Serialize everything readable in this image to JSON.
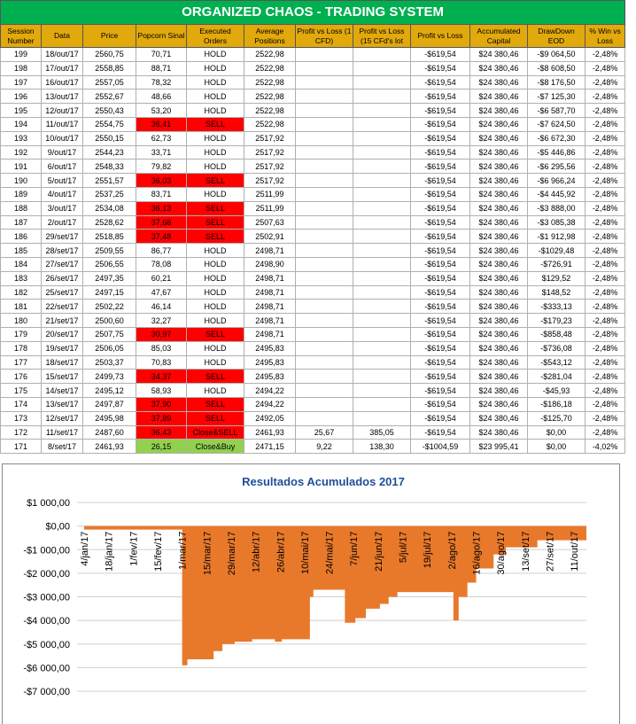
{
  "table": {
    "title": "ORGANIZED CHAOS - TRADING SYSTEM",
    "header": [
      "Session Number",
      "Data",
      "Price",
      "Popcorn Sinal",
      "Executed Orders",
      "Average Positions",
      "Profit vs Loss (1 CFD)",
      "Profit vs Loss (15 CFd's lot",
      "Profit vs Loss",
      "Accumulated Capital",
      "DrawDown EOD",
      "% Win vs Loss"
    ],
    "rows": [
      {
        "cells": [
          "199",
          "18/out/17",
          "2560,75",
          "70,71",
          "HOLD",
          "2522,98",
          null,
          null,
          "-$619,54",
          "$24 380,46",
          "-$9 064,50",
          "-2,48%"
        ]
      },
      {
        "cells": [
          "198",
          "17/out/17",
          "2558,85",
          "88,71",
          "HOLD",
          "2522,98",
          null,
          null,
          "-$619,54",
          "$24 380,46",
          "-$8 608,50",
          "-2,48%"
        ]
      },
      {
        "cells": [
          "197",
          "16/out/17",
          "2557,05",
          "78,32",
          "HOLD",
          "2522,98",
          null,
          null,
          "-$619,54",
          "$24 380,46",
          "-$8 176,50",
          "-2,48%"
        ]
      },
      {
        "cells": [
          "196",
          "13/out/17",
          "2552,67",
          "48,66",
          "HOLD",
          "2522,98",
          null,
          null,
          "-$619,54",
          "$24 380,46",
          "-$7 125,30",
          "-2,48%"
        ]
      },
      {
        "cells": [
          "195",
          "12/out/17",
          "2550,43",
          "53,20",
          "HOLD",
          "2522,98",
          null,
          null,
          "-$619,54",
          "$24 380,46",
          "-$6 587,70",
          "-2,48%"
        ]
      },
      {
        "cells": [
          "194",
          "11/out/17",
          "2554,75",
          "36,41",
          "SELL",
          "2522,98",
          null,
          null,
          "-$619,54",
          "$24 380,46",
          "-$7 624,50",
          "-2,48%"
        ],
        "signal_color": "#ff0000"
      },
      {
        "cells": [
          "193",
          "10/out/17",
          "2550,15",
          "62,73",
          "HOLD",
          "2517,92",
          null,
          null,
          "-$619,54",
          "$24 380,46",
          "-$6 672,30",
          "-2,48%"
        ]
      },
      {
        "cells": [
          "192",
          "9/out/17",
          "2544,23",
          "33,71",
          "HOLD",
          "2517,92",
          null,
          null,
          "-$619,54",
          "$24 380,46",
          "-$5 446,86",
          "-2,48%"
        ]
      },
      {
        "cells": [
          "191",
          "6/out/17",
          "2548,33",
          "79,82",
          "HOLD",
          "2517,92",
          null,
          null,
          "-$619,54",
          "$24 380,46",
          "-$6 295,56",
          "-2,48%"
        ]
      },
      {
        "cells": [
          "190",
          "5/out/17",
          "2551,57",
          "36,03",
          "SELL",
          "2517,92",
          null,
          null,
          "-$619,54",
          "$24 380,46",
          "-$6 966,24",
          "-2,48%"
        ],
        "signal_color": "#ff0000"
      },
      {
        "cells": [
          "189",
          "4/out/17",
          "2537,25",
          "83,71",
          "HOLD",
          "2511,99",
          null,
          null,
          "-$619,54",
          "$24 380,46",
          "-$4 445,92",
          "-2,48%"
        ]
      },
      {
        "cells": [
          "188",
          "3/out/17",
          "2534,08",
          "36,13",
          "SELL",
          "2511,99",
          null,
          null,
          "-$619,54",
          "$24 380,46",
          "-$3 888,00",
          "-2,48%"
        ],
        "signal_color": "#ff0000"
      },
      {
        "cells": [
          "187",
          "2/out/17",
          "2528,62",
          "37,68",
          "SELL",
          "2507,63",
          null,
          null,
          "-$619,54",
          "$24 380,46",
          "-$3 085,38",
          "-2,48%"
        ],
        "signal_color": "#ff0000"
      },
      {
        "cells": [
          "186",
          "29/set/17",
          "2518,85",
          "37,48",
          "SELL",
          "2502,91",
          null,
          null,
          "-$619,54",
          "$24 380,46",
          "-$1 912,98",
          "-2,48%"
        ],
        "signal_color": "#ff0000"
      },
      {
        "cells": [
          "185",
          "28/set/17",
          "2509,55",
          "86,77",
          "HOLD",
          "2498,71",
          null,
          null,
          "-$619,54",
          "$24 380,46",
          "-$1029,48",
          "-2,48%"
        ]
      },
      {
        "cells": [
          "184",
          "27/set/17",
          "2506,55",
          "78,08",
          "HOLD",
          "2498,90",
          null,
          null,
          "-$619,54",
          "$24 380,46",
          "-$726,91",
          "-2,48%"
        ]
      },
      {
        "cells": [
          "183",
          "26/set/17",
          "2497,35",
          "60,21",
          "HOLD",
          "2498,71",
          null,
          null,
          "-$619,54",
          "$24 380,46",
          "$129,52",
          "-2,48%"
        ]
      },
      {
        "cells": [
          "182",
          "25/set/17",
          "2497,15",
          "47,67",
          "HOLD",
          "2498,71",
          null,
          null,
          "-$619,54",
          "$24 380,46",
          "$148,52",
          "-2,48%"
        ]
      },
      {
        "cells": [
          "181",
          "22/set/17",
          "2502,22",
          "46,14",
          "HOLD",
          "2498,71",
          null,
          null,
          "-$619,54",
          "$24 380,46",
          "-$333,13",
          "-2,48%"
        ]
      },
      {
        "cells": [
          "180",
          "21/set/17",
          "2500,60",
          "32,27",
          "HOLD",
          "2498,71",
          null,
          null,
          "-$619,54",
          "$24 380,46",
          "-$179,23",
          "-2,48%"
        ]
      },
      {
        "cells": [
          "179",
          "20/set/17",
          "2507,75",
          "30,97",
          "SELL",
          "2498,71",
          null,
          null,
          "-$619,54",
          "$24 380,46",
          "-$858,48",
          "-2,48%"
        ],
        "signal_color": "#ff0000"
      },
      {
        "cells": [
          "178",
          "19/set/17",
          "2506,05",
          "85,03",
          "HOLD",
          "2495,83",
          null,
          null,
          "-$619,54",
          "$24 380,46",
          "-$736,08",
          "-2,48%"
        ]
      },
      {
        "cells": [
          "177",
          "18/set/17",
          "2503,37",
          "70,83",
          "HOLD",
          "2495,83",
          null,
          null,
          "-$619,54",
          "$24 380,46",
          "-$543,12",
          "-2,48%"
        ]
      },
      {
        "cells": [
          "176",
          "15/set/17",
          "2499,73",
          "34,37",
          "SELL",
          "2495,83",
          null,
          null,
          "-$619,54",
          "$24 380,46",
          "-$281,04",
          "-2,48%"
        ],
        "signal_color": "#ff0000"
      },
      {
        "cells": [
          "175",
          "14/set/17",
          "2495,12",
          "58,93",
          "HOLD",
          "2494,22",
          null,
          null,
          "-$619,54",
          "$24 380,46",
          "-$45,93",
          "-2,48%"
        ]
      },
      {
        "cells": [
          "174",
          "13/set/17",
          "2497,87",
          "37,90",
          "SELL",
          "2494,22",
          null,
          null,
          "-$619,54",
          "$24 380,46",
          "-$186,18",
          "-2,48%"
        ],
        "signal_color": "#ff0000"
      },
      {
        "cells": [
          "173",
          "12/set/17",
          "2495,98",
          "37,89",
          "SELL",
          "2492,05",
          null,
          null,
          "-$619,54",
          "$24 380,46",
          "-$125,70",
          "-2,48%"
        ],
        "signal_color": "#ff0000"
      },
      {
        "cells": [
          "172",
          "11/set/17",
          "2487,60",
          "36,43",
          "Close&SELL",
          "2461,93",
          "25,67",
          "385,05",
          "-$619,54",
          "$24 380,46",
          "$0,00",
          "-2,48%"
        ],
        "signal_color": "#ff0000"
      },
      {
        "cells": [
          "171",
          "8/set/17",
          "2461,93",
          "26,15",
          "Close&Buy",
          "2471,15",
          "9,22",
          "138,30",
          "-$1004,59",
          "$23 995,41",
          "$0,00",
          "-4,02%"
        ],
        "signal_color": "#92d050"
      }
    ]
  },
  "chart_data": {
    "type": "area",
    "title": "Resultados Acumulados 2017",
    "color": "#e8792b",
    "step": true,
    "grid": true,
    "x": [
      "4/jan/17",
      "1/mar/17",
      "4/mar/17",
      "19/mar/17",
      "24/mar/17",
      "31/mar/17",
      "10/abr/17",
      "23/abr/17",
      "27/abr/17",
      "13/mai/17",
      "15/mai/17",
      "2/jun/17",
      "8/jun/17",
      "14/jun/17",
      "22/jun/17",
      "27/jun/17",
      "2/jul/17",
      "3/ago/17",
      "6/ago/17",
      "11/ago/17",
      "16/ago/17",
      "26/ago/17",
      "2/set/17",
      "20/set/17",
      "18/out/17"
    ],
    "values": [
      -150,
      -5900,
      -5650,
      -5300,
      -5000,
      -4900,
      -4800,
      -4900,
      -4800,
      -3000,
      -2700,
      -4100,
      -3900,
      -3500,
      -3300,
      -3000,
      -2800,
      -4000,
      -3000,
      -2400,
      -1800,
      -1200,
      -900,
      -600,
      -620
    ],
    "ylim": [
      -7000,
      1000
    ],
    "yticks": [
      {
        "value": 1000,
        "label": "$1 000,00"
      },
      {
        "value": 0,
        "label": "$0,00"
      },
      {
        "value": -1000,
        "label": "-$1 000,00"
      },
      {
        "value": -2000,
        "label": "-$2 000,00"
      },
      {
        "value": -3000,
        "label": "-$3 000,00"
      },
      {
        "value": -4000,
        "label": "-$4 000,00"
      },
      {
        "value": -5000,
        "label": "-$5 000,00"
      },
      {
        "value": -6000,
        "label": "-$6 000,00"
      },
      {
        "value": -7000,
        "label": "-$7 000,00"
      }
    ],
    "xticks": [
      "4/jan/17",
      "18/jan/17",
      "1/fev/17",
      "15/fev/17",
      "1/mar/17",
      "15/mar/17",
      "29/mar/17",
      "12/abr/17",
      "26/abr/17",
      "10/mai/17",
      "24/mai/17",
      "7/jun/17",
      "21/jun/17",
      "5/jul/17",
      "19/jul/17",
      "2/ago/17",
      "16/ago/17",
      "30/ago/17",
      "13/set/17",
      "27/set/17",
      "11/out/17"
    ]
  }
}
